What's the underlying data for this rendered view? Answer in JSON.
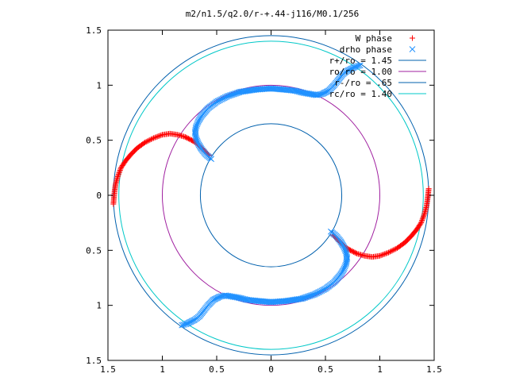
{
  "chart_data": {
    "type": "scatter",
    "title": "m2/n1.5/q2.0/r-+.44-j116/M0.1/256",
    "xlim": [
      -1.5,
      1.5
    ],
    "ylim": [
      -1.5,
      1.5
    ],
    "x_ticks": [
      {
        "value": -1.5,
        "label": "1.5"
      },
      {
        "value": -1.0,
        "label": "1"
      },
      {
        "value": -0.5,
        "label": "0.5"
      },
      {
        "value": 0.0,
        "label": "0"
      },
      {
        "value": 0.5,
        "label": "0.5"
      },
      {
        "value": 1.0,
        "label": "1"
      },
      {
        "value": 1.5,
        "label": "1.5"
      }
    ],
    "y_ticks": [
      {
        "value": 1.5,
        "label": "1.5"
      },
      {
        "value": 1.0,
        "label": "1"
      },
      {
        "value": 0.5,
        "label": "0.5"
      },
      {
        "value": 0.0,
        "label": "0"
      },
      {
        "value": -0.5,
        "label": "0.5"
      },
      {
        "value": -1.0,
        "label": "1"
      },
      {
        "value": -1.5,
        "label": "1.5"
      }
    ],
    "grid": false,
    "legend_position": "top-right",
    "circles": [
      {
        "name": "r+/ro = 1.45",
        "radius": 1.45,
        "color": "#0060ad"
      },
      {
        "name": "ro/ro = 1.00",
        "radius": 1.0,
        "color": "#a020a0"
      },
      {
        "name": "r-/ro = .65",
        "radius": 0.65,
        "color": "#0060ad"
      },
      {
        "name": "rc/ro = 1.40",
        "radius": 1.4,
        "color": "#00c8c8"
      }
    ],
    "series": [
      {
        "name": "W phase",
        "marker": "plus",
        "color": "#ff0000",
        "points": [
          [
            -1.45,
            -0.08
          ],
          [
            -1.44,
            0.03
          ],
          [
            -1.43,
            0.1
          ],
          [
            -1.41,
            0.17
          ],
          [
            -1.38,
            0.25
          ],
          [
            -1.34,
            0.31
          ],
          [
            -1.29,
            0.37
          ],
          [
            -1.23,
            0.43
          ],
          [
            -1.16,
            0.48
          ],
          [
            -1.08,
            0.52
          ],
          [
            -1.0,
            0.55
          ],
          [
            -0.93,
            0.56
          ],
          [
            -0.86,
            0.55
          ],
          [
            -0.79,
            0.53
          ],
          [
            -0.73,
            0.5
          ],
          [
            -0.68,
            0.47
          ],
          [
            -0.64,
            0.43
          ],
          [
            -0.6,
            0.39
          ],
          [
            -0.57,
            0.36
          ],
          [
            1.45,
            0.06
          ],
          [
            1.44,
            -0.03
          ],
          [
            1.43,
            -0.1
          ],
          [
            1.41,
            -0.17
          ],
          [
            1.38,
            -0.25
          ],
          [
            1.34,
            -0.31
          ],
          [
            1.29,
            -0.37
          ],
          [
            1.23,
            -0.43
          ],
          [
            1.16,
            -0.48
          ],
          [
            1.08,
            -0.52
          ],
          [
            1.0,
            -0.55
          ],
          [
            0.93,
            -0.56
          ],
          [
            0.86,
            -0.55
          ],
          [
            0.79,
            -0.53
          ],
          [
            0.73,
            -0.5
          ],
          [
            0.68,
            -0.47
          ],
          [
            0.64,
            -0.43
          ],
          [
            0.6,
            -0.39
          ],
          [
            0.57,
            -0.36
          ]
        ]
      },
      {
        "name": "drho phase",
        "marker": "cross",
        "color": "#1e90ff",
        "points": [
          [
            -0.55,
            0.33
          ],
          [
            -0.6,
            0.37
          ],
          [
            -0.64,
            0.42
          ],
          [
            -0.67,
            0.47
          ],
          [
            -0.69,
            0.52
          ],
          [
            -0.7,
            0.57
          ],
          [
            -0.69,
            0.62
          ],
          [
            -0.67,
            0.67
          ],
          [
            -0.64,
            0.72
          ],
          [
            -0.58,
            0.79
          ],
          [
            -0.5,
            0.85
          ],
          [
            -0.4,
            0.9
          ],
          [
            -0.28,
            0.94
          ],
          [
            -0.14,
            0.96
          ],
          [
            0.0,
            0.97
          ],
          [
            0.12,
            0.96
          ],
          [
            0.22,
            0.95
          ],
          [
            0.3,
            0.93
          ],
          [
            0.36,
            0.92
          ],
          [
            0.42,
            0.91
          ],
          [
            0.47,
            0.92
          ],
          [
            0.53,
            0.95
          ],
          [
            0.58,
            1.0
          ],
          [
            0.62,
            1.05
          ],
          [
            0.66,
            1.1
          ],
          [
            0.7,
            1.13
          ],
          [
            0.74,
            1.15
          ],
          [
            0.78,
            1.17
          ],
          [
            0.82,
            1.18
          ],
          [
            0.55,
            -0.33
          ],
          [
            0.6,
            -0.37
          ],
          [
            0.64,
            -0.42
          ],
          [
            0.67,
            -0.47
          ],
          [
            0.69,
            -0.52
          ],
          [
            0.7,
            -0.57
          ],
          [
            0.69,
            -0.62
          ],
          [
            0.67,
            -0.67
          ],
          [
            0.64,
            -0.72
          ],
          [
            0.58,
            -0.79
          ],
          [
            0.5,
            -0.85
          ],
          [
            0.4,
            -0.9
          ],
          [
            0.28,
            -0.94
          ],
          [
            0.14,
            -0.96
          ],
          [
            0.0,
            -0.97
          ],
          [
            -0.12,
            -0.96
          ],
          [
            -0.22,
            -0.95
          ],
          [
            -0.3,
            -0.93
          ],
          [
            -0.36,
            -0.92
          ],
          [
            -0.42,
            -0.91
          ],
          [
            -0.47,
            -0.92
          ],
          [
            -0.53,
            -0.95
          ],
          [
            -0.58,
            -1.0
          ],
          [
            -0.62,
            -1.05
          ],
          [
            -0.66,
            -1.1
          ],
          [
            -0.7,
            -1.13
          ],
          [
            -0.74,
            -1.15
          ],
          [
            -0.78,
            -1.17
          ],
          [
            -0.82,
            -1.18
          ]
        ]
      }
    ]
  }
}
